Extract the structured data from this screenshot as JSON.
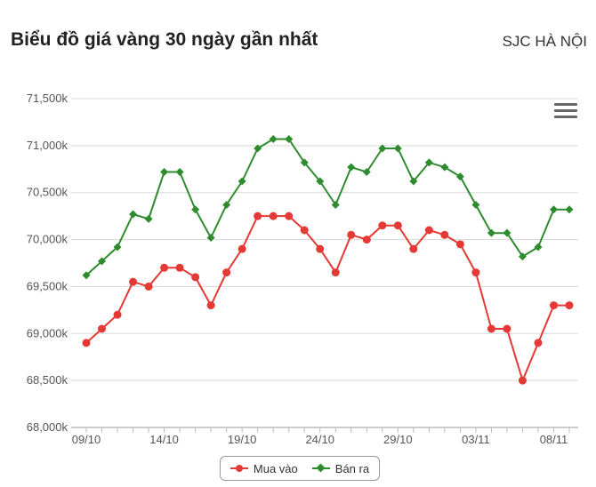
{
  "header": {
    "title": "Biểu đồ giá vàng 30 ngày gần nhất",
    "subtitle": "SJC HÀ NỘI"
  },
  "icons": {
    "menu": "hamburger-menu-icon"
  },
  "chart_data": {
    "type": "line",
    "title": "Biểu đồ giá vàng 30 ngày gần nhất",
    "subtitle": "SJC HÀ NỘI",
    "x": [
      "09/10",
      "10/10",
      "11/10",
      "12/10",
      "13/10",
      "14/10",
      "15/10",
      "16/10",
      "17/10",
      "18/10",
      "19/10",
      "20/10",
      "21/10",
      "22/10",
      "23/10",
      "24/10",
      "25/10",
      "26/10",
      "27/10",
      "28/10",
      "29/10",
      "30/10",
      "31/10",
      "01/11",
      "02/11",
      "03/11",
      "04/11",
      "05/11",
      "06/11",
      "07/11",
      "08/11",
      "09/11"
    ],
    "x_tick_labels": [
      "09/10",
      "14/10",
      "19/10",
      "24/10",
      "29/10",
      "03/11",
      "08/11"
    ],
    "x_tick_index": [
      0,
      5,
      10,
      15,
      20,
      25,
      30
    ],
    "y_ticks": [
      68000,
      68500,
      69000,
      69500,
      70000,
      70500,
      71000,
      71500
    ],
    "y_tick_labels": [
      "68,000k",
      "68,500k",
      "69,000k",
      "69,500k",
      "70,000k",
      "70,500k",
      "71,000k",
      "71,500k"
    ],
    "ylim": [
      68000,
      71500
    ],
    "grid": true,
    "legend_position": "bottom-center",
    "series": [
      {
        "name": "Mua vào",
        "color": "#e53935",
        "marker": "circle",
        "values": [
          68900,
          69050,
          69200,
          69550,
          69500,
          69700,
          69700,
          69600,
          69300,
          69650,
          69900,
          70250,
          70250,
          70250,
          70100,
          69900,
          69650,
          70050,
          70000,
          70150,
          70150,
          69900,
          70100,
          70050,
          69950,
          69650,
          69050,
          69050,
          68500,
          68900,
          69300,
          69300
        ]
      },
      {
        "name": "Bán ra",
        "color": "#2e8b2e",
        "marker": "diamond",
        "values": [
          69620,
          69770,
          69920,
          70270,
          70220,
          70720,
          70720,
          70320,
          70020,
          70370,
          70620,
          70970,
          71070,
          71070,
          70820,
          70620,
          70370,
          70770,
          70720,
          70970,
          70970,
          70620,
          70820,
          70770,
          70670,
          70370,
          70070,
          70070,
          69820,
          69920,
          70320,
          70320
        ]
      }
    ]
  }
}
